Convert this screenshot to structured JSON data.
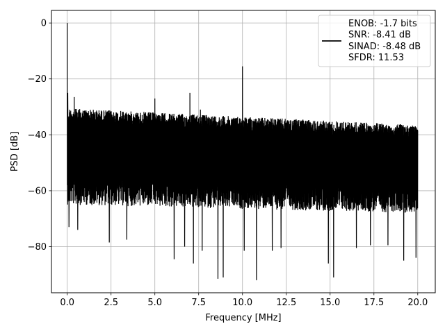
{
  "chart_data": {
    "type": "line",
    "title": "",
    "xlabel": "Frequency [MHz]",
    "ylabel": "PSD [dB]",
    "xlim": [
      -0.9,
      21.0
    ],
    "ylim": [
      -96.5,
      4.5
    ],
    "x_ticks": [
      0.0,
      2.5,
      5.0,
      7.5,
      10.0,
      12.5,
      15.0,
      17.5,
      20.0
    ],
    "x_tick_labels": [
      "0.0",
      "2.5",
      "5.0",
      "7.5",
      "10.0",
      "12.5",
      "15.0",
      "17.5",
      "20.0"
    ],
    "y_ticks": [
      0,
      -20,
      -40,
      -60,
      -80
    ],
    "y_tick_labels": [
      "0",
      "−20",
      "−40",
      "−60",
      "−80"
    ],
    "grid": true,
    "legend_position": "top-right",
    "series": [
      {
        "color": "#000000",
        "x_range": [
          0,
          20
        ],
        "upper_envelope_start": -30.5,
        "upper_envelope_end": -36.5,
        "lower_envelope_start": -61,
        "lower_envelope_end": -64,
        "peaks": [
          {
            "x": 0.0,
            "y": 0
          },
          {
            "x": 0.03,
            "y": -25
          },
          {
            "x": 0.4,
            "y": -26.5
          },
          {
            "x": 5.0,
            "y": -27
          },
          {
            "x": 7.0,
            "y": -25
          },
          {
            "x": 7.6,
            "y": -31
          },
          {
            "x": 10.0,
            "y": -15.5
          }
        ],
        "dips": [
          {
            "x": 0.1,
            "y": -73
          },
          {
            "x": 0.6,
            "y": -74
          },
          {
            "x": 2.4,
            "y": -78.5
          },
          {
            "x": 3.4,
            "y": -77.5
          },
          {
            "x": 6.1,
            "y": -84.5
          },
          {
            "x": 6.7,
            "y": -80
          },
          {
            "x": 7.2,
            "y": -86
          },
          {
            "x": 7.7,
            "y": -81.5
          },
          {
            "x": 8.6,
            "y": -91.5
          },
          {
            "x": 8.9,
            "y": -91
          },
          {
            "x": 10.1,
            "y": -81.5
          },
          {
            "x": 10.8,
            "y": -92
          },
          {
            "x": 11.7,
            "y": -81.5
          },
          {
            "x": 12.2,
            "y": -80.5
          },
          {
            "x": 14.9,
            "y": -86
          },
          {
            "x": 15.2,
            "y": -91
          },
          {
            "x": 16.5,
            "y": -80.5
          },
          {
            "x": 17.3,
            "y": -79.5
          },
          {
            "x": 18.3,
            "y": -79.5
          },
          {
            "x": 19.2,
            "y": -85
          },
          {
            "x": 19.9,
            "y": -84
          }
        ]
      }
    ],
    "legend_lines": [
      "ENOB: -1.7 bits",
      "SNR: -8.41 dB",
      "SINAD: -8.48 dB",
      "SFDR: 11.53"
    ]
  }
}
